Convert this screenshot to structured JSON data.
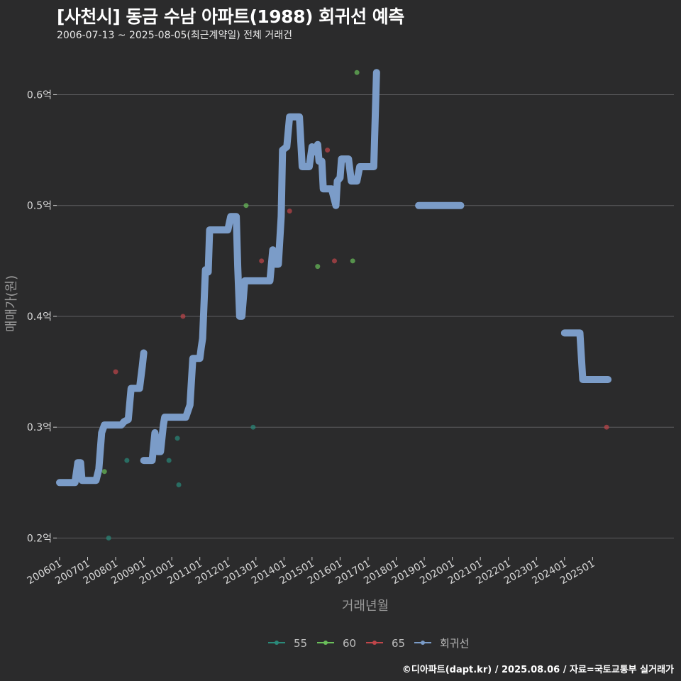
{
  "header": {
    "title": "[사천시] 동금 수남 아파트(1988) 회귀선 예측",
    "subtitle": "2006-07-13 ~ 2025-08-05(최근계약일) 전체 거래건"
  },
  "footer": {
    "credit": "©디아파트(dapt.kr) / 2025.08.06 / 자료=국토교통부 실거래가"
  },
  "colors": {
    "background": "#2b2b2c",
    "grid": "#5d5d5f",
    "series_55": "#2a8a7a",
    "series_60": "#6abf5a",
    "series_65": "#c0464a",
    "regression": "#7b9cc8"
  },
  "chart_data": {
    "type": "scatter",
    "title": "[사천시] 동금 수남 아파트(1988) 회귀선 예측",
    "xlabel": "거래년월",
    "ylabel": "매매가(원)",
    "x_tick_labels": [
      "200601",
      "200701",
      "200801",
      "200901",
      "201001",
      "201101",
      "201201",
      "201301",
      "201401",
      "201501",
      "201601",
      "201701",
      "201801",
      "201901",
      "202001",
      "202101",
      "202201",
      "202301",
      "202401",
      "202501"
    ],
    "y_ticks": [
      0.2,
      0.3,
      0.4,
      0.5,
      0.6
    ],
    "y_tick_labels": [
      "0.2억",
      "0.3억",
      "0.4억",
      "0.5억",
      "0.6억"
    ],
    "xlim": [
      2005.9,
      2027.9
    ],
    "ylim": [
      0.183,
      0.647
    ],
    "legend": {
      "position": "bottom",
      "entries": [
        "55",
        "60",
        "65",
        "회귀선"
      ]
    },
    "series": [
      {
        "name": "55",
        "points": [
          [
            2007.75,
            0.2
          ],
          [
            2008.4,
            0.27
          ],
          [
            2009.9,
            0.27
          ],
          [
            2010.2,
            0.29
          ],
          [
            2010.25,
            0.248
          ],
          [
            2012.9,
            0.3
          ]
        ]
      },
      {
        "name": "60",
        "points": [
          [
            2007.6,
            0.26
          ],
          [
            2012.65,
            0.5
          ],
          [
            2015.2,
            0.445
          ],
          [
            2016.45,
            0.45
          ],
          [
            2016.6,
            0.62
          ]
        ]
      },
      {
        "name": "65",
        "points": [
          [
            2008.0,
            0.35
          ],
          [
            2010.4,
            0.4
          ],
          [
            2013.2,
            0.45
          ],
          [
            2014.2,
            0.495
          ],
          [
            2015.55,
            0.55
          ],
          [
            2015.8,
            0.45
          ],
          [
            2025.5,
            0.3
          ]
        ]
      },
      {
        "name": "회귀선",
        "segments": [
          [
            [
              2006.0,
              0.25
            ],
            [
              2006.55,
              0.25
            ],
            [
              2006.65,
              0.268
            ],
            [
              2006.75,
              0.268
            ],
            [
              2006.8,
              0.252
            ],
            [
              2007.3,
              0.252
            ],
            [
              2007.4,
              0.262
            ],
            [
              2007.5,
              0.295
            ],
            [
              2007.6,
              0.302
            ],
            [
              2008.2,
              0.302
            ],
            [
              2008.3,
              0.305
            ],
            [
              2008.45,
              0.307
            ],
            [
              2008.55,
              0.335
            ],
            [
              2008.85,
              0.335
            ],
            [
              2008.95,
              0.355
            ],
            [
              2009.0,
              0.367
            ]
          ],
          [
            [
              2009.0,
              0.27
            ],
            [
              2009.3,
              0.27
            ],
            [
              2009.4,
              0.295
            ],
            [
              2009.5,
              0.278
            ],
            [
              2009.6,
              0.278
            ],
            [
              2009.7,
              0.302
            ],
            [
              2009.75,
              0.309
            ],
            [
              2010.5,
              0.309
            ],
            [
              2010.65,
              0.32
            ],
            [
              2010.75,
              0.362
            ],
            [
              2011.0,
              0.362
            ],
            [
              2011.05,
              0.372
            ],
            [
              2011.1,
              0.38
            ],
            [
              2011.2,
              0.442
            ],
            [
              2011.3,
              0.44
            ],
            [
              2011.35,
              0.478
            ],
            [
              2012.0,
              0.478
            ],
            [
              2012.1,
              0.49
            ],
            [
              2012.3,
              0.49
            ],
            [
              2012.35,
              0.445
            ],
            [
              2012.42,
              0.4
            ],
            [
              2012.5,
              0.4
            ],
            [
              2012.6,
              0.432
            ],
            [
              2013.5,
              0.432
            ],
            [
              2013.6,
              0.46
            ],
            [
              2013.7,
              0.447
            ],
            [
              2013.8,
              0.447
            ],
            [
              2013.9,
              0.49
            ],
            [
              2013.95,
              0.55
            ],
            [
              2014.1,
              0.553
            ],
            [
              2014.2,
              0.58
            ],
            [
              2014.55,
              0.58
            ],
            [
              2014.65,
              0.535
            ],
            [
              2014.9,
              0.535
            ],
            [
              2015.0,
              0.553
            ],
            [
              2015.15,
              0.548
            ],
            [
              2015.2,
              0.555
            ],
            [
              2015.25,
              0.54
            ],
            [
              2015.35,
              0.54
            ],
            [
              2015.4,
              0.515
            ],
            [
              2015.7,
              0.515
            ],
            [
              2015.85,
              0.5
            ],
            [
              2015.9,
              0.522
            ],
            [
              2016.0,
              0.525
            ],
            [
              2016.05,
              0.542
            ],
            [
              2016.3,
              0.542
            ],
            [
              2016.4,
              0.522
            ],
            [
              2016.6,
              0.522
            ],
            [
              2016.7,
              0.535
            ],
            [
              2017.2,
              0.535
            ],
            [
              2017.3,
              0.62
            ]
          ],
          [
            [
              2018.8,
              0.5
            ],
            [
              2020.3,
              0.5
            ]
          ],
          [
            [
              2024.0,
              0.385
            ],
            [
              2024.55,
              0.385
            ],
            [
              2024.65,
              0.343
            ],
            [
              2025.55,
              0.343
            ]
          ]
        ]
      }
    ]
  }
}
